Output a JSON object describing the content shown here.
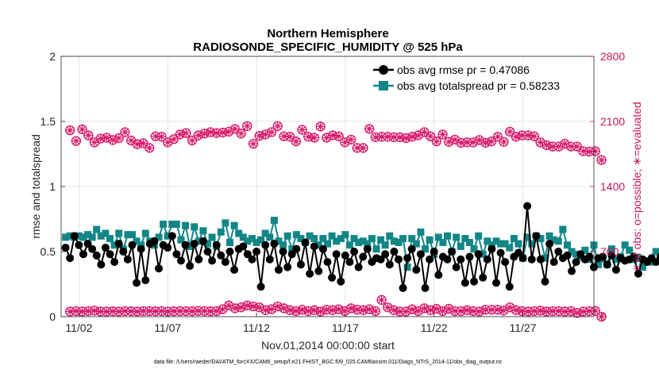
{
  "chart_data": {
    "type": "line",
    "title": "Northern Hemisphere",
    "subtitle": "RADIOSONDE_SPECIFIC_HUMIDITY @ 525 hPa",
    "xlabel": "Nov.01,2014 00:00:00 start",
    "ylabel": "rmse and totalspread",
    "y2label": "# of obs: o=possible; ∗=evaluated",
    "footer": "data file: /Users/raeder/DAI/ATM_forcXX/CAM6_setup/f.e21.FHIST_BGC.f09_025.CAM6assim.011/Diags_NTrS_2014-11/obs_diag_output.nc",
    "xlim": [
      1.0,
      31.0
    ],
    "ylim": [
      0,
      2
    ],
    "y2lim": [
      0,
      2800
    ],
    "x_ticks": [
      2,
      7,
      12,
      17,
      22,
      27
    ],
    "x_tick_labels": [
      "11/02",
      "11/07",
      "11/12",
      "11/17",
      "11/22",
      "11/27"
    ],
    "y_ticks": [
      0,
      0.5,
      1,
      1.5,
      2
    ],
    "y_tick_labels": [
      "0",
      "0.5",
      "1",
      "1.5",
      "2"
    ],
    "y2_ticks": [
      0,
      700,
      1400,
      2100,
      2800
    ],
    "y2_tick_labels": [
      "0",
      "700",
      "1400",
      "2100",
      "2800"
    ],
    "grid": true,
    "legend_position": "top-right",
    "colors": {
      "rmse": "#000000",
      "spread": "#138686",
      "obs": "#d8196a",
      "axis2": "#c8155c"
    },
    "x_start": 1.25,
    "x_step": 0.25,
    "series": [
      {
        "name": "obs avg rmse",
        "legend_label": "obs avg rmse pr = 0.47086",
        "axis": "left",
        "values": [
          0.53,
          0.45,
          0.62,
          0.55,
          0.48,
          0.56,
          0.52,
          0.47,
          0.4,
          0.53,
          0.48,
          0.42,
          0.56,
          0.5,
          0.44,
          0.55,
          0.26,
          0.52,
          0.28,
          0.56,
          0.58,
          0.37,
          0.55,
          0.53,
          0.62,
          0.48,
          0.43,
          0.55,
          0.39,
          0.56,
          0.44,
          0.58,
          0.5,
          0.43,
          0.55,
          0.47,
          0.42,
          0.5,
          0.36,
          0.52,
          0.54,
          0.48,
          0.44,
          0.5,
          0.23,
          0.55,
          0.44,
          0.56,
          0.36,
          0.5,
          0.38,
          0.48,
          0.52,
          0.4,
          0.57,
          0.33,
          0.54,
          0.35,
          0.52,
          0.42,
          0.3,
          0.48,
          0.27,
          0.47,
          0.42,
          0.5,
          0.38,
          0.46,
          0.52,
          0.42,
          0.45,
          0.44,
          0.48,
          0.4,
          0.5,
          0.44,
          0.22,
          0.45,
          0.52,
          0.36,
          0.48,
          0.22,
          0.44,
          0.5,
          0.32,
          0.46,
          0.44,
          0.5,
          0.38,
          0.44,
          0.26,
          0.46,
          0.27,
          0.48,
          0.3,
          0.44,
          0.52,
          0.26,
          0.49,
          0.42,
          0.23,
          0.46,
          0.49,
          0.45,
          0.85,
          0.44,
          0.62,
          0.44,
          0.27,
          0.56,
          0.42,
          0.5,
          0.45,
          0.47,
          0.35,
          0.42,
          0.48,
          0.44,
          0.46,
          0.38,
          0.45,
          0.46,
          0.4,
          0.47,
          0.36,
          0.45,
          0.43,
          0.44,
          0.46,
          0.33,
          0.44,
          0.42,
          0.45,
          0.42,
          0.46,
          0.41,
          0.44,
          0.47,
          0.4,
          0.46,
          0.42,
          0.45,
          0.4,
          0.44,
          0.39,
          0.4
        ]
      },
      {
        "name": "obs avg totalspread",
        "legend_label": "obs avg totalspread pr = 0.58233",
        "axis": "left",
        "values": [
          0.61,
          0.62,
          0.61,
          0.62,
          0.61,
          0.63,
          0.61,
          0.67,
          0.62,
          0.64,
          0.6,
          0.55,
          0.64,
          0.52,
          0.63,
          0.63,
          0.58,
          0.55,
          0.64,
          0.58,
          0.55,
          0.61,
          0.71,
          0.62,
          0.71,
          0.71,
          0.59,
          0.7,
          0.54,
          0.69,
          0.58,
          0.66,
          0.56,
          0.61,
          0.54,
          0.65,
          0.72,
          0.57,
          0.7,
          0.64,
          0.61,
          0.58,
          0.6,
          0.57,
          0.59,
          0.64,
          0.61,
          0.74,
          0.58,
          0.55,
          0.62,
          0.52,
          0.63,
          0.6,
          0.57,
          0.62,
          0.6,
          0.55,
          0.6,
          0.56,
          0.62,
          0.58,
          0.6,
          0.63,
          0.55,
          0.6,
          0.57,
          0.58,
          0.56,
          0.6,
          0.52,
          0.59,
          0.55,
          0.62,
          0.58,
          0.57,
          0.6,
          0.38,
          0.6,
          0.56,
          0.65,
          0.52,
          0.59,
          0.48,
          0.61,
          0.57,
          0.62,
          0.5,
          0.61,
          0.54,
          0.6,
          0.57,
          0.52,
          0.62,
          0.48,
          0.58,
          0.55,
          0.58,
          0.56,
          0.56,
          0.53,
          0.6,
          0.56,
          0.45,
          0.61,
          0.56,
          0.62,
          0.6,
          0.45,
          0.62,
          0.59,
          0.58,
          0.67,
          0.55,
          0.5,
          0.48,
          0.46,
          0.51,
          0.44,
          0.55,
          0.4,
          0.44,
          0.4,
          0.52,
          0.44,
          0.46,
          0.55,
          0.51,
          0.44,
          0.45,
          0.38,
          0.43,
          0.42,
          0.5,
          0.44,
          0.46,
          0.42,
          0.45,
          0.48,
          0.55,
          0.47,
          0.44,
          0.45,
          0.58,
          0.49,
          0.32
        ]
      },
      {
        "name": "# obs possible",
        "marker": "circle",
        "axis": "right",
        "values": [
          2005,
          1890,
          2015,
          1950,
          1875,
          1915,
          1925,
          1900,
          1920,
          1985,
          1895,
          1855,
          1865,
          1815,
          1940,
          1935,
          1875,
          1910,
          1960,
          1975,
          1895,
          1950,
          1970,
          1985,
          1975,
          1980,
          1990,
          2020,
          1970,
          2050,
          1860,
          1945,
          1960,
          1985,
          2050,
          1940,
          1935,
          1885,
          2010,
          1935,
          1925,
          2045,
          1925,
          1950,
          1940,
          1875,
          1905,
          1815,
          1815,
          2020,
          1930,
          1935,
          1935,
          1930,
          1930,
          1920,
          1935,
          1950,
          1985,
          1940,
          1885,
          1960,
          1880,
          1905,
          1870,
          1875,
          1875,
          1900,
          1870,
          1885,
          1935,
          1880,
          1990,
          1935,
          1950,
          1950,
          1940,
          1875,
          1845,
          1830,
          1830,
          1860,
          1830,
          1830,
          1780,
          1775,
          1780,
          1685
        ],
        "values_low": [
          55,
          60,
          55,
          60,
          65,
          55,
          55,
          58,
          55,
          60,
          58,
          55,
          60,
          60,
          58,
          60,
          55,
          58,
          60,
          60,
          58,
          62,
          60,
          58,
          60,
          80,
          120,
          90,
          100,
          120,
          110,
          100,
          70,
          80,
          110,
          90,
          70,
          60,
          75,
          60,
          70,
          55,
          75,
          70,
          80,
          60,
          90,
          75,
          70,
          80,
          60,
          180,
          100,
          70,
          55,
          55,
          80,
          60,
          90,
          70,
          85,
          60,
          85,
          60,
          60,
          70,
          60,
          55,
          75,
          75,
          75,
          65,
          100,
          70,
          60,
          55,
          60,
          65,
          55,
          60,
          60,
          55,
          60,
          40,
          55,
          60,
          62,
          0
        ]
      },
      {
        "name": "# obs evaluated",
        "marker": "asterisk",
        "axis": "right",
        "values": [
          2005,
          1890,
          2015,
          1950,
          1875,
          1915,
          1925,
          1900,
          1920,
          1985,
          1895,
          1855,
          1865,
          1815,
          1940,
          1935,
          1875,
          1910,
          1960,
          1975,
          1895,
          1950,
          1970,
          1985,
          1975,
          1980,
          1990,
          2020,
          1970,
          2050,
          1860,
          1945,
          1960,
          1985,
          2050,
          1940,
          1935,
          1885,
          2010,
          1935,
          1925,
          2045,
          1925,
          1950,
          1940,
          1875,
          1905,
          1815,
          1815,
          2020,
          1930,
          1935,
          1935,
          1930,
          1930,
          1920,
          1935,
          1950,
          1985,
          1940,
          1885,
          1960,
          1880,
          1905,
          1870,
          1875,
          1875,
          1900,
          1870,
          1885,
          1935,
          1880,
          1990,
          1935,
          1950,
          1950,
          1940,
          1875,
          1845,
          1830,
          1830,
          1860,
          1830,
          1830,
          1780,
          1775,
          1780,
          1685
        ],
        "values_low": [
          55,
          60,
          55,
          60,
          65,
          55,
          55,
          58,
          55,
          60,
          58,
          55,
          60,
          60,
          58,
          60,
          55,
          58,
          60,
          60,
          58,
          62,
          60,
          58,
          60,
          80,
          120,
          90,
          100,
          120,
          110,
          100,
          70,
          80,
          110,
          90,
          70,
          60,
          75,
          60,
          70,
          55,
          75,
          70,
          80,
          60,
          90,
          75,
          70,
          80,
          60,
          180,
          100,
          70,
          55,
          55,
          80,
          60,
          90,
          70,
          85,
          60,
          85,
          60,
          60,
          70,
          60,
          55,
          75,
          75,
          75,
          65,
          100,
          70,
          60,
          55,
          60,
          65,
          55,
          60,
          60,
          55,
          60,
          40,
          55,
          60,
          62,
          0
        ]
      }
    ],
    "obs_x_start": 1.5,
    "obs_x_step": 0.344
  }
}
